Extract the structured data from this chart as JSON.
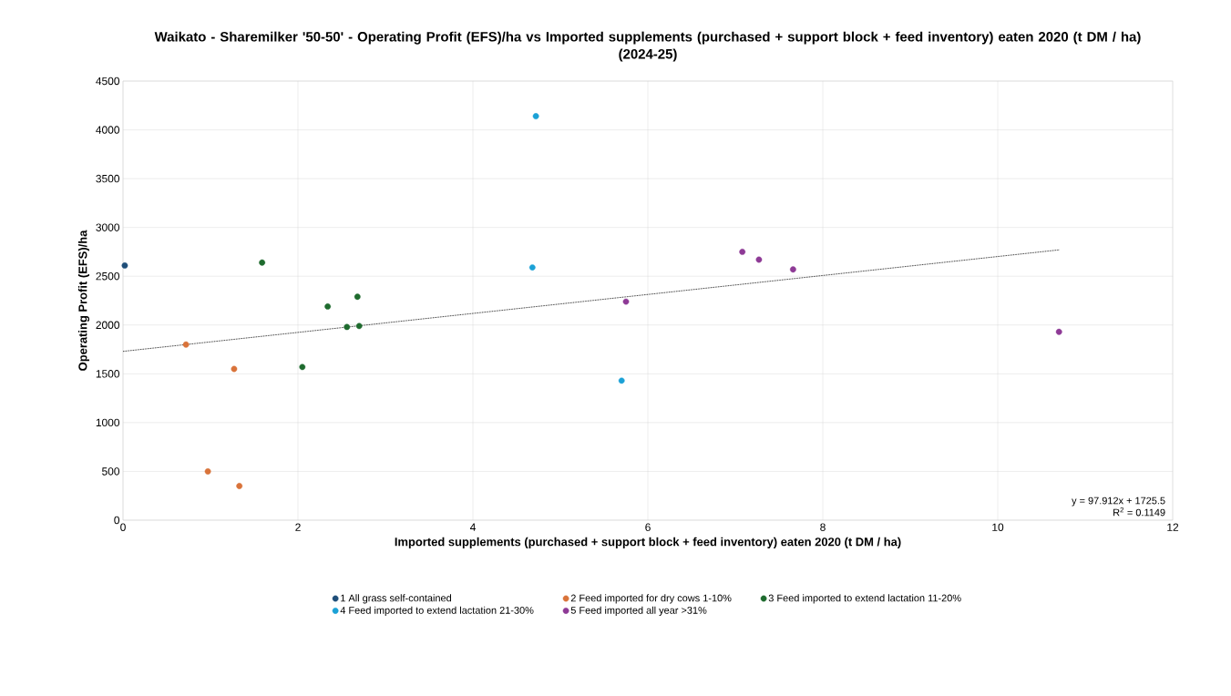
{
  "chart_data": {
    "type": "scatter",
    "title": "Waikato - Sharemilker '50-50' - Operating Profit (EFS)/ha vs Imported supplements (purchased + support block + feed inventory) eaten 2020 (t DM / ha) (2024-25)",
    "xlabel": "Imported supplements (purchased + support block + feed inventory) eaten 2020 (t DM / ha)",
    "ylabel": "Operating Profit (EFS)/ha",
    "series": [
      {
        "name": "1 All grass self-contained",
        "marker": "circle",
        "color": "#1f4e79",
        "x": [
          0.02
        ],
        "values": [
          2610
        ]
      },
      {
        "name": "2 Feed imported for dry cows 1-10%",
        "marker": "circle",
        "color": "#d9733a",
        "x": [
          0.72,
          0.97,
          1.27,
          1.33
        ],
        "values": [
          1800,
          500,
          1550,
          350
        ]
      },
      {
        "name": "3 Feed imported to extend lactation 11-20%",
        "marker": "circle",
        "color": "#1e6b2e",
        "x": [
          1.59,
          2.05,
          2.34,
          2.56,
          2.68,
          2.7
        ],
        "values": [
          2640,
          1570,
          2190,
          1980,
          2290,
          1990
        ]
      },
      {
        "name": "4 Feed imported to extend lactation 21-30%",
        "marker": "circle",
        "color": "#1ba1d6",
        "x": [
          4.72,
          4.68,
          5.7
        ],
        "values": [
          4140,
          2590,
          1430
        ]
      },
      {
        "name": "5 Feed imported all year >31%",
        "marker": "circle",
        "color": "#8e3a96",
        "x": [
          5.75,
          7.08,
          7.27,
          7.66,
          10.7
        ],
        "values": [
          2240,
          2750,
          2670,
          2570,
          1930
        ]
      },
      {
        "type": "line",
        "marker": "none",
        "color": "#000000",
        "x": [
          0,
          10.7
        ],
        "values": [
          1730,
          2770
        ]
      }
    ],
    "line_style": "dotted",
    "xlim": [
      0,
      12
    ],
    "xticks": [
      0,
      2,
      4,
      6,
      8,
      10,
      12
    ],
    "ylim": [
      0,
      4500
    ],
    "yticks": [
      0,
      500,
      1000,
      1500,
      2000,
      2500,
      3000,
      3500,
      4000,
      4500
    ],
    "grid": true,
    "legend": "bottom",
    "annotations": [
      "y = 97.912x + 1725.5",
      "R$^{2}$ = 0.1149"
    ]
  }
}
